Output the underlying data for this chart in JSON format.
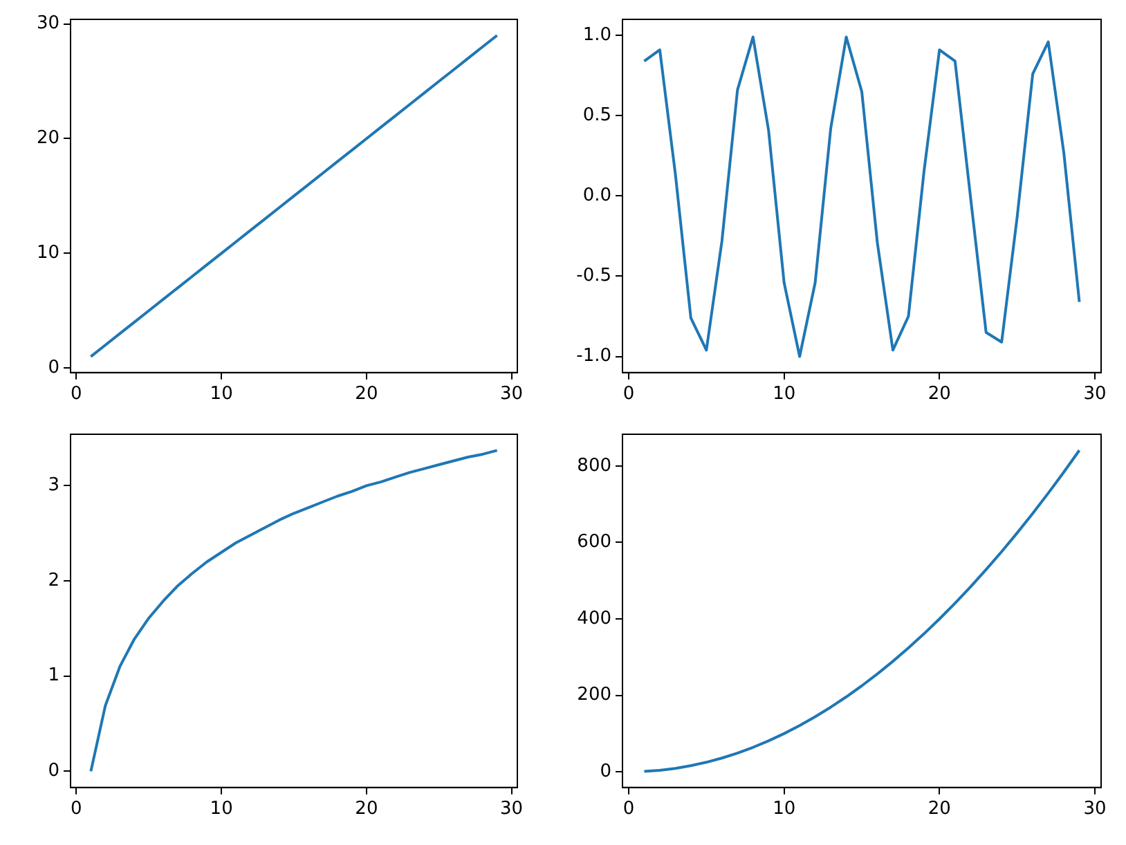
{
  "chart_data": [
    {
      "type": "line",
      "x": [
        1,
        2,
        3,
        4,
        5,
        6,
        7,
        8,
        9,
        10,
        11,
        12,
        13,
        14,
        15,
        16,
        17,
        18,
        19,
        20,
        21,
        22,
        23,
        24,
        25,
        26,
        27,
        28,
        29
      ],
      "series": [
        {
          "color": "#1f77b4",
          "values": [
            1,
            2,
            3,
            4,
            5,
            6,
            7,
            8,
            9,
            10,
            11,
            12,
            13,
            14,
            15,
            16,
            17,
            18,
            19,
            20,
            21,
            22,
            23,
            24,
            25,
            26,
            27,
            28,
            29
          ]
        }
      ],
      "xlim": [
        -0.4,
        30.4
      ],
      "xticks": [
        0,
        10,
        20,
        30
      ],
      "ylim": [
        -0.4,
        30.4
      ],
      "yticks": [
        0,
        10,
        20,
        30
      ],
      "grid": false,
      "legend": false,
      "marker": "none",
      "line_style": "solid"
    },
    {
      "type": "line",
      "x": [
        1,
        2,
        3,
        4,
        5,
        6,
        7,
        8,
        9,
        10,
        11,
        12,
        13,
        14,
        15,
        16,
        17,
        18,
        19,
        20,
        21,
        22,
        23,
        24,
        25,
        26,
        27,
        28,
        29
      ],
      "series": [
        {
          "color": "#1f77b4",
          "values": [
            0.84,
            0.91,
            0.14,
            -0.76,
            -0.96,
            -0.28,
            0.66,
            0.99,
            0.41,
            -0.54,
            -1.0,
            -0.54,
            0.42,
            0.99,
            0.65,
            -0.29,
            -0.96,
            -0.75,
            0.15,
            0.91,
            0.84,
            -0.01,
            -0.85,
            -0.91,
            -0.13,
            0.76,
            0.96,
            0.27,
            -0.66
          ]
        }
      ],
      "xlim": [
        -0.4,
        30.4
      ],
      "xticks": [
        0,
        10,
        20,
        30
      ],
      "ylim": [
        -1.1,
        1.1
      ],
      "yticks": [
        {
          "value": -1,
          "label": "-1.0"
        },
        {
          "value": -0.5,
          "label": "-0.5"
        },
        {
          "value": 0,
          "label": "0.0"
        },
        {
          "value": 0.5,
          "label": "0.5"
        },
        {
          "value": 1,
          "label": "1.0"
        }
      ],
      "grid": false,
      "legend": false,
      "marker": "none",
      "line_style": "solid"
    },
    {
      "type": "line",
      "x": [
        1,
        2,
        3,
        4,
        5,
        6,
        7,
        8,
        9,
        10,
        11,
        12,
        13,
        14,
        15,
        16,
        17,
        18,
        19,
        20,
        21,
        22,
        23,
        24,
        25,
        26,
        27,
        28,
        29
      ],
      "series": [
        {
          "color": "#1f77b4",
          "values": [
            0,
            0.69,
            1.1,
            1.39,
            1.61,
            1.79,
            1.95,
            2.08,
            2.2,
            2.3,
            2.4,
            2.48,
            2.56,
            2.64,
            2.71,
            2.77,
            2.83,
            2.89,
            2.94,
            3.0,
            3.04,
            3.09,
            3.14,
            3.18,
            3.22,
            3.26,
            3.3,
            3.33,
            3.37
          ]
        }
      ],
      "xlim": [
        -0.4,
        30.4
      ],
      "xticks": [
        0,
        10,
        20,
        30
      ],
      "ylim": [
        -0.17,
        3.54
      ],
      "yticks": [
        0,
        1,
        2,
        3
      ],
      "grid": false,
      "legend": false,
      "marker": "none",
      "line_style": "solid"
    },
    {
      "type": "line",
      "x": [
        1,
        2,
        3,
        4,
        5,
        6,
        7,
        8,
        9,
        10,
        11,
        12,
        13,
        14,
        15,
        16,
        17,
        18,
        19,
        20,
        21,
        22,
        23,
        24,
        25,
        26,
        27,
        28,
        29
      ],
      "series": [
        {
          "color": "#1f77b4",
          "values": [
            1,
            4,
            9,
            16,
            25,
            36,
            49,
            64,
            81,
            100,
            121,
            144,
            169,
            196,
            225,
            256,
            289,
            324,
            361,
            400,
            441,
            484,
            529,
            576,
            625,
            676,
            729,
            784,
            841
          ]
        }
      ],
      "xlim": [
        -0.4,
        30.4
      ],
      "xticks": [
        0,
        10,
        20,
        30
      ],
      "ylim": [
        -41,
        883
      ],
      "yticks": [
        0,
        200,
        400,
        600,
        800
      ],
      "grid": false,
      "legend": false,
      "marker": "none",
      "line_style": "solid"
    }
  ]
}
